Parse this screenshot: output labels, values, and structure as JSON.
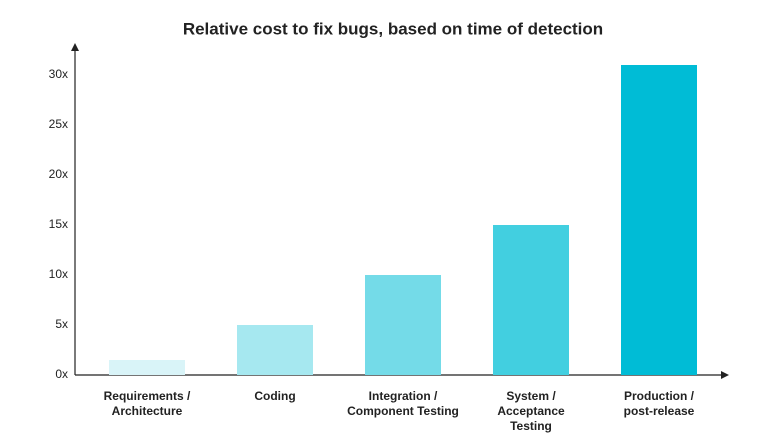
{
  "chart_data": {
    "type": "bar",
    "title": "Relative cost to fix bugs, based on time of detection",
    "categories": [
      "Requirements  /\nArchitecture",
      "Coding",
      "Integration /\nComponent Testing",
      "System /\nAcceptance\nTesting",
      "Production /\npost-release"
    ],
    "values": [
      1.5,
      5,
      10,
      15,
      31
    ],
    "colors": [
      "#d9f4f8",
      "#a6e8f0",
      "#74dbe8",
      "#42cfe0",
      "#00bcd6"
    ],
    "ylim": [
      0,
      33
    ],
    "yticks": [
      {
        "value": 0,
        "label": "0x"
      },
      {
        "value": 5,
        "label": "5x"
      },
      {
        "value": 10,
        "label": "10x"
      },
      {
        "value": 15,
        "label": "15x"
      },
      {
        "value": 20,
        "label": "20x"
      },
      {
        "value": 25,
        "label": "25x"
      },
      {
        "value": 30,
        "label": "30x"
      }
    ],
    "grid": false
  }
}
